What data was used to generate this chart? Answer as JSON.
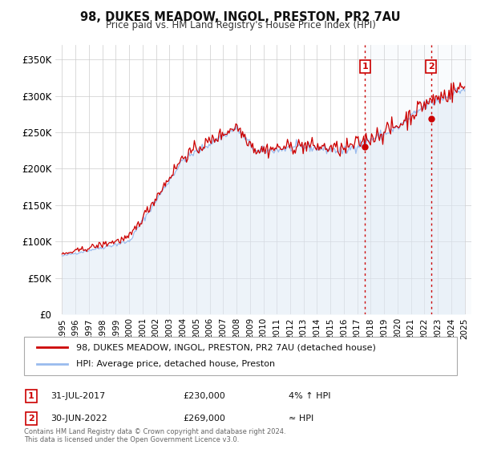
{
  "title": "98, DUKES MEADOW, INGOL, PRESTON, PR2 7AU",
  "subtitle": "Price paid vs. HM Land Registry's House Price Index (HPI)",
  "legend_line1": "98, DUKES MEADOW, INGOL, PRESTON, PR2 7AU (detached house)",
  "legend_line2": "HPI: Average price, detached house, Preston",
  "annotation1_label": "1",
  "annotation1_date": "31-JUL-2017",
  "annotation1_price": "£230,000",
  "annotation1_hpi": "4% ↑ HPI",
  "annotation2_label": "2",
  "annotation2_date": "30-JUN-2022",
  "annotation2_price": "£269,000",
  "annotation2_hpi": "≈ HPI",
  "sale1_year": 2017.58,
  "sale1_value": 230000,
  "sale2_year": 2022.5,
  "sale2_value": 269000,
  "price_line_color": "#cc0000",
  "hpi_line_color": "#99bbee",
  "hpi_fill_color": "#dde8f5",
  "vline_color": "#cc0000",
  "annotation_box_color": "#cc0000",
  "grid_color": "#cccccc",
  "bg_color": "#ffffff",
  "footer_text": "Contains HM Land Registry data © Crown copyright and database right 2024.\nThis data is licensed under the Open Government Licence v3.0.",
  "ylim": [
    0,
    370000
  ],
  "yticks": [
    0,
    50000,
    100000,
    150000,
    200000,
    250000,
    300000,
    350000
  ],
  "ytick_labels": [
    "£0",
    "£50K",
    "£100K",
    "£150K",
    "£200K",
    "£250K",
    "£300K",
    "£350K"
  ],
  "xlim_start": 1994.5,
  "xlim_end": 2025.5
}
